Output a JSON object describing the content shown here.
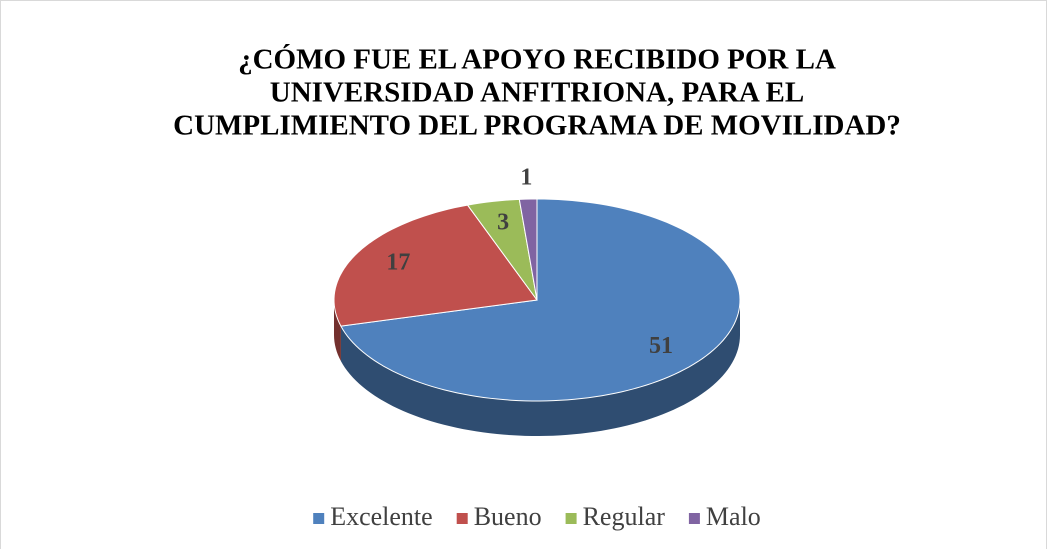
{
  "chart_data": {
    "type": "pie3d",
    "title": [
      "¿CÓMO FUE EL APOYO RECIBIDO POR LA",
      "UNIVERSIDAD ANFITRIONA, PARA EL",
      "CUMPLIMIENTO DEL PROGRAMA DE MOVILIDAD?"
    ],
    "categories": [
      "Excelente",
      "Bueno",
      "Regular",
      "Malo"
    ],
    "values": [
      51,
      17,
      3,
      1
    ],
    "colors": [
      "#4f81bd",
      "#c0504d",
      "#9bbb59",
      "#8064a2"
    ],
    "legend": "bottom"
  }
}
